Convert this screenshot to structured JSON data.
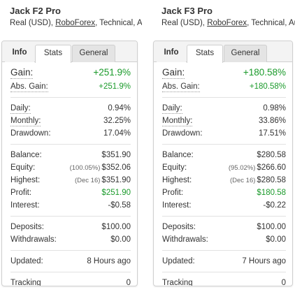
{
  "systems": [
    {
      "name": "Jack F2 Pro",
      "sub_prefix": "Real (USD),",
      "broker": "RoboForex",
      "sub_suffix": ", Technical, Autom",
      "tabs": {
        "info": "Info",
        "stats": "Stats",
        "general": "General"
      },
      "gain": {
        "label": "Gain:",
        "value": "+251.9%"
      },
      "abs_gain": {
        "label": "Abs. Gain:",
        "value": "+251.9%"
      },
      "daily": {
        "label": "Daily:",
        "value": "0.94%"
      },
      "monthly": {
        "label": "Monthly:",
        "value": "32.25%"
      },
      "drawdown": {
        "label": "Drawdown:",
        "value": "17.04%"
      },
      "balance": {
        "label": "Balance:",
        "value": "$351.90"
      },
      "equity": {
        "label": "Equity:",
        "pre": "(100.05%)",
        "value": "$352.06"
      },
      "highest": {
        "label": "Highest:",
        "pre": "(Dec 16)",
        "value": "$351.90"
      },
      "profit": {
        "label": "Profit:",
        "value": "$251.90"
      },
      "interest": {
        "label": "Interest:",
        "value": "-$0.58"
      },
      "deposits": {
        "label": "Deposits:",
        "value": "$100.00"
      },
      "withdrawals": {
        "label": "Withdrawals:",
        "value": "$0.00"
      },
      "updated": {
        "label": "Updated:",
        "value": "8 Hours ago"
      },
      "tracking": {
        "label": "Tracking",
        "value": "0"
      }
    },
    {
      "name": "Jack F3 Pro",
      "sub_prefix": "Real (USD),",
      "broker": "RoboForex",
      "sub_suffix": ", Technical, Auto",
      "tabs": {
        "info": "Info",
        "stats": "Stats",
        "general": "General"
      },
      "gain": {
        "label": "Gain:",
        "value": "+180.58%"
      },
      "abs_gain": {
        "label": "Abs. Gain:",
        "value": "+180.58%"
      },
      "daily": {
        "label": "Daily:",
        "value": "0.98%"
      },
      "monthly": {
        "label": "Monthly:",
        "value": "33.86%"
      },
      "drawdown": {
        "label": "Drawdown:",
        "value": "17.51%"
      },
      "balance": {
        "label": "Balance:",
        "value": "$280.58"
      },
      "equity": {
        "label": "Equity:",
        "pre": "(95.02%)",
        "value": "$266.60"
      },
      "highest": {
        "label": "Highest:",
        "pre": "(Dec 16)",
        "value": "$280.58"
      },
      "profit": {
        "label": "Profit:",
        "value": "$180.58"
      },
      "interest": {
        "label": "Interest:",
        "value": "-$0.22"
      },
      "deposits": {
        "label": "Deposits:",
        "value": "$100.00"
      },
      "withdrawals": {
        "label": "Withdrawals:",
        "value": "$0.00"
      },
      "updated": {
        "label": "Updated:",
        "value": "7 Hours ago"
      },
      "tracking": {
        "label": "Tracking",
        "value": "0"
      }
    }
  ],
  "colors": {
    "positive": "#1a9a2a",
    "text": "#333333",
    "border": "#d0d0d0"
  }
}
